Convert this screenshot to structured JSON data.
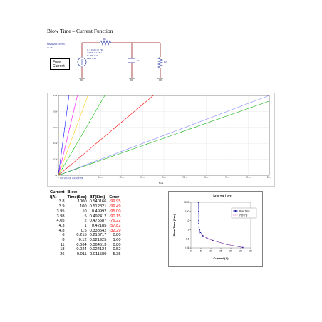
{
  "title": "Blow Time – Current  Function",
  "schematic": {
    "parameters_label": "PARAMETERS:",
    "parameters_value": "I = 16",
    "fuse_label_line1": "Fuse",
    "fuse_label_line2": "Current",
    "source_label": "I1 = 0  I2 = {I}  TD = 0  TR = 1  TF = 1u  PW = 10  PER = 20",
    "resistor_label": "R1",
    "cap_label": "C1",
    "res2_label": "R2"
  },
  "sim_plot": {
    "x_ticks": [
      "0s",
      "5ms",
      "10ms",
      "15ms",
      "20ms",
      "25ms",
      "30ms",
      "35ms",
      "40ms",
      "45ms",
      "50ms"
    ],
    "y_ticks": [
      "1.0V",
      "0.8V",
      "0.6V",
      "0.4V",
      "0.2V",
      "0V"
    ],
    "x_label": "Time",
    "legend_text": "V(1)  V(2)  V(3)  V(4)  V(5)  V(6)",
    "colors": [
      "#0000ff",
      "#ff00ff",
      "#ffd000",
      "#00c000",
      "#ff0000",
      "#8080ff",
      "#00aa00"
    ]
  },
  "table": {
    "headers": [
      "Current I(A)",
      "Blow Time(Sec)",
      "BT(Sim)",
      "Error"
    ],
    "header_line1": [
      "Current",
      "Blow",
      "",
      ""
    ],
    "header_line2": [
      "I(A)",
      "Time(Sec)",
      "BT(Sim)",
      "Error"
    ],
    "rows": [
      [
        "3.8",
        "1000",
        "0.540166",
        "-99.95"
      ],
      [
        "3.9",
        "100",
        "0.512821",
        "-99.49"
      ],
      [
        "3.95",
        "10",
        "0.49992",
        "-95.00"
      ],
      [
        "3.98",
        "5",
        "0.492412",
        "-90.15"
      ],
      [
        "4.05",
        "2",
        "0.475587",
        "-76.22"
      ],
      [
        "4.3",
        "1",
        "0.42185",
        "-57.82"
      ],
      [
        "4.8",
        "0.5",
        "0.338542",
        "-32.29"
      ],
      [
        "6",
        "0.215",
        "0.216717",
        "0.80"
      ],
      [
        "8",
        "0.12",
        "0.121925",
        "1.60"
      ],
      [
        "11",
        "0.064",
        "0.064513",
        "0.80"
      ],
      [
        "18",
        "0.024",
        "0.024124",
        "0.52"
      ],
      [
        "26",
        "0.011",
        "0.011589",
        "5.35"
      ]
    ]
  },
  "chart_data": {
    "type": "scatter",
    "title": "bt = 7.8 / I^2",
    "xlabel": "Current (A)",
    "ylabel": "Blow Time (Sec)",
    "xlim": [
      0,
      30
    ],
    "ylim": [
      0.01,
      1000
    ],
    "yscale": "log",
    "x_ticks": [
      "0",
      "5",
      "10",
      "15",
      "20",
      "25",
      "30"
    ],
    "y_ticks": [
      "1000",
      "100",
      "10",
      "1",
      "0.1",
      "0.01"
    ],
    "legend_position": "right",
    "series": [
      {
        "name": "Blow Time",
        "color": "#1a1aa0",
        "x": [
          3.8,
          3.9,
          3.95,
          3.98,
          4.05,
          4.3,
          4.8,
          6,
          8,
          11,
          18,
          26
        ],
        "values": [
          1000,
          100,
          10,
          5,
          2,
          1,
          0.5,
          0.215,
          0.12,
          0.064,
          0.024,
          0.011
        ]
      },
      {
        "name": "I^2t=7.8",
        "color": "#cc3399",
        "x": [
          3.8,
          3.9,
          3.95,
          3.98,
          4.05,
          4.3,
          4.8,
          6,
          8,
          11,
          18,
          26
        ],
        "values": [
          0.540166,
          0.512821,
          0.49992,
          0.492412,
          0.475587,
          0.42185,
          0.338542,
          0.216717,
          0.121925,
          0.064513,
          0.024124,
          0.011589
        ]
      }
    ]
  }
}
